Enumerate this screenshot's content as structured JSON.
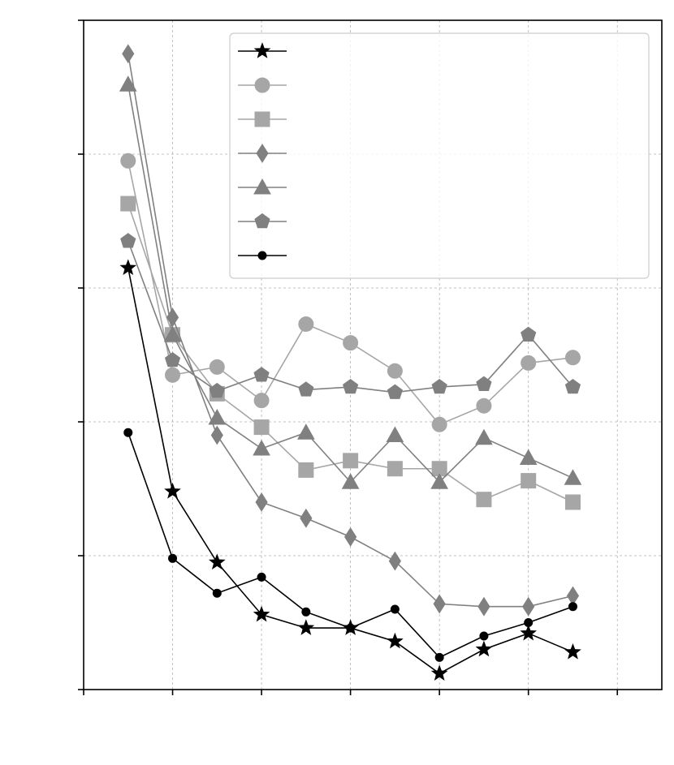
{
  "chart_data": {
    "type": "line",
    "title": "",
    "xlabel": "",
    "ylabel": "",
    "xlim": [
      0,
      6.5
    ],
    "ylim": [
      0,
      5
    ],
    "xgrid": [
      1,
      2,
      3,
      4,
      5,
      6
    ],
    "ygrid": [
      1,
      2,
      3,
      4
    ],
    "xticks": [
      0,
      1,
      2,
      3,
      4,
      5,
      6
    ],
    "yticks": [
      0,
      1,
      2,
      3,
      4,
      5
    ],
    "grid": true,
    "legend_position": "top-right",
    "x": [
      0.5,
      1.0,
      1.5,
      2.0,
      2.5,
      3.0,
      3.5,
      4.0,
      4.5,
      5.0,
      5.5
    ],
    "series": [
      {
        "marker": "star",
        "color": "#000000",
        "values": [
          3.15,
          1.48,
          0.95,
          0.56,
          0.46,
          0.46,
          0.36,
          0.12,
          0.3,
          0.42,
          0.28
        ]
      },
      {
        "marker": "circle",
        "color": "#a6a6a6",
        "values": [
          3.95,
          2.35,
          2.41,
          2.16,
          2.73,
          2.59,
          2.38,
          1.98,
          2.12,
          2.44,
          2.48
        ]
      },
      {
        "marker": "square",
        "color": "#a6a6a6",
        "values": [
          3.63,
          2.65,
          2.21,
          1.96,
          1.64,
          1.71,
          1.65,
          1.65,
          1.42,
          1.56,
          1.4
        ]
      },
      {
        "marker": "diamond",
        "color": "#808080",
        "values": [
          4.75,
          2.78,
          1.9,
          1.4,
          1.28,
          1.14,
          0.96,
          0.64,
          0.62,
          0.62,
          0.7
        ]
      },
      {
        "marker": "triangle",
        "color": "#808080",
        "values": [
          4.52,
          2.65,
          2.03,
          1.8,
          1.92,
          1.55,
          1.9,
          1.55,
          1.88,
          1.73,
          1.58
        ]
      },
      {
        "marker": "pentagon",
        "color": "#808080",
        "values": [
          3.35,
          2.46,
          2.23,
          2.35,
          2.24,
          2.26,
          2.22,
          2.26,
          2.28,
          2.65,
          2.26
        ]
      },
      {
        "marker": "dot",
        "color": "#000000",
        "values": [
          1.92,
          0.98,
          0.72,
          0.84,
          0.58,
          0.46,
          0.6,
          0.24,
          0.4,
          0.5,
          0.62
        ]
      }
    ]
  }
}
